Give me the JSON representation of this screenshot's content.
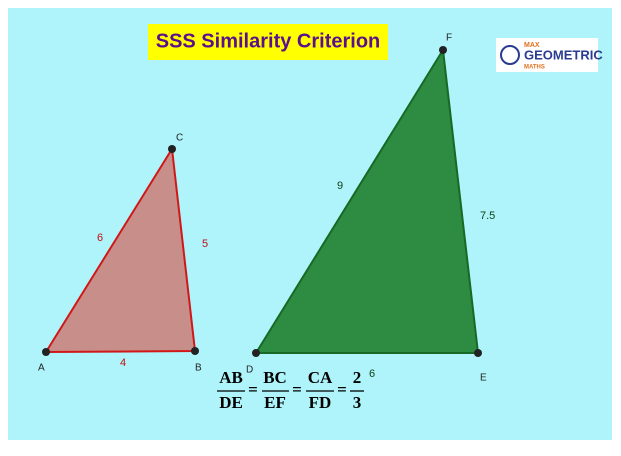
{
  "title": "SSS Similarity Criterion",
  "logo": {
    "line1": "MAX",
    "line2": "GEOMETRIC",
    "line3": "MATHS"
  },
  "triangle_abc": {
    "vertices": [
      "A",
      "B",
      "C"
    ],
    "side_ca": 6,
    "side_bc": 5,
    "side_ab": 4
  },
  "triangle_def": {
    "vertices": [
      "D",
      "E",
      "F"
    ],
    "side_fd": 9,
    "side_ef": 7.5,
    "side_de": 6
  },
  "equation": {
    "fractions": [
      {
        "numerator": "AB",
        "denominator": "DE"
      },
      {
        "numerator": "BC",
        "denominator": "EF"
      },
      {
        "numerator": "CA",
        "denominator": "FD"
      },
      {
        "numerator": "2",
        "denominator": "3"
      }
    ],
    "equals": "="
  }
}
